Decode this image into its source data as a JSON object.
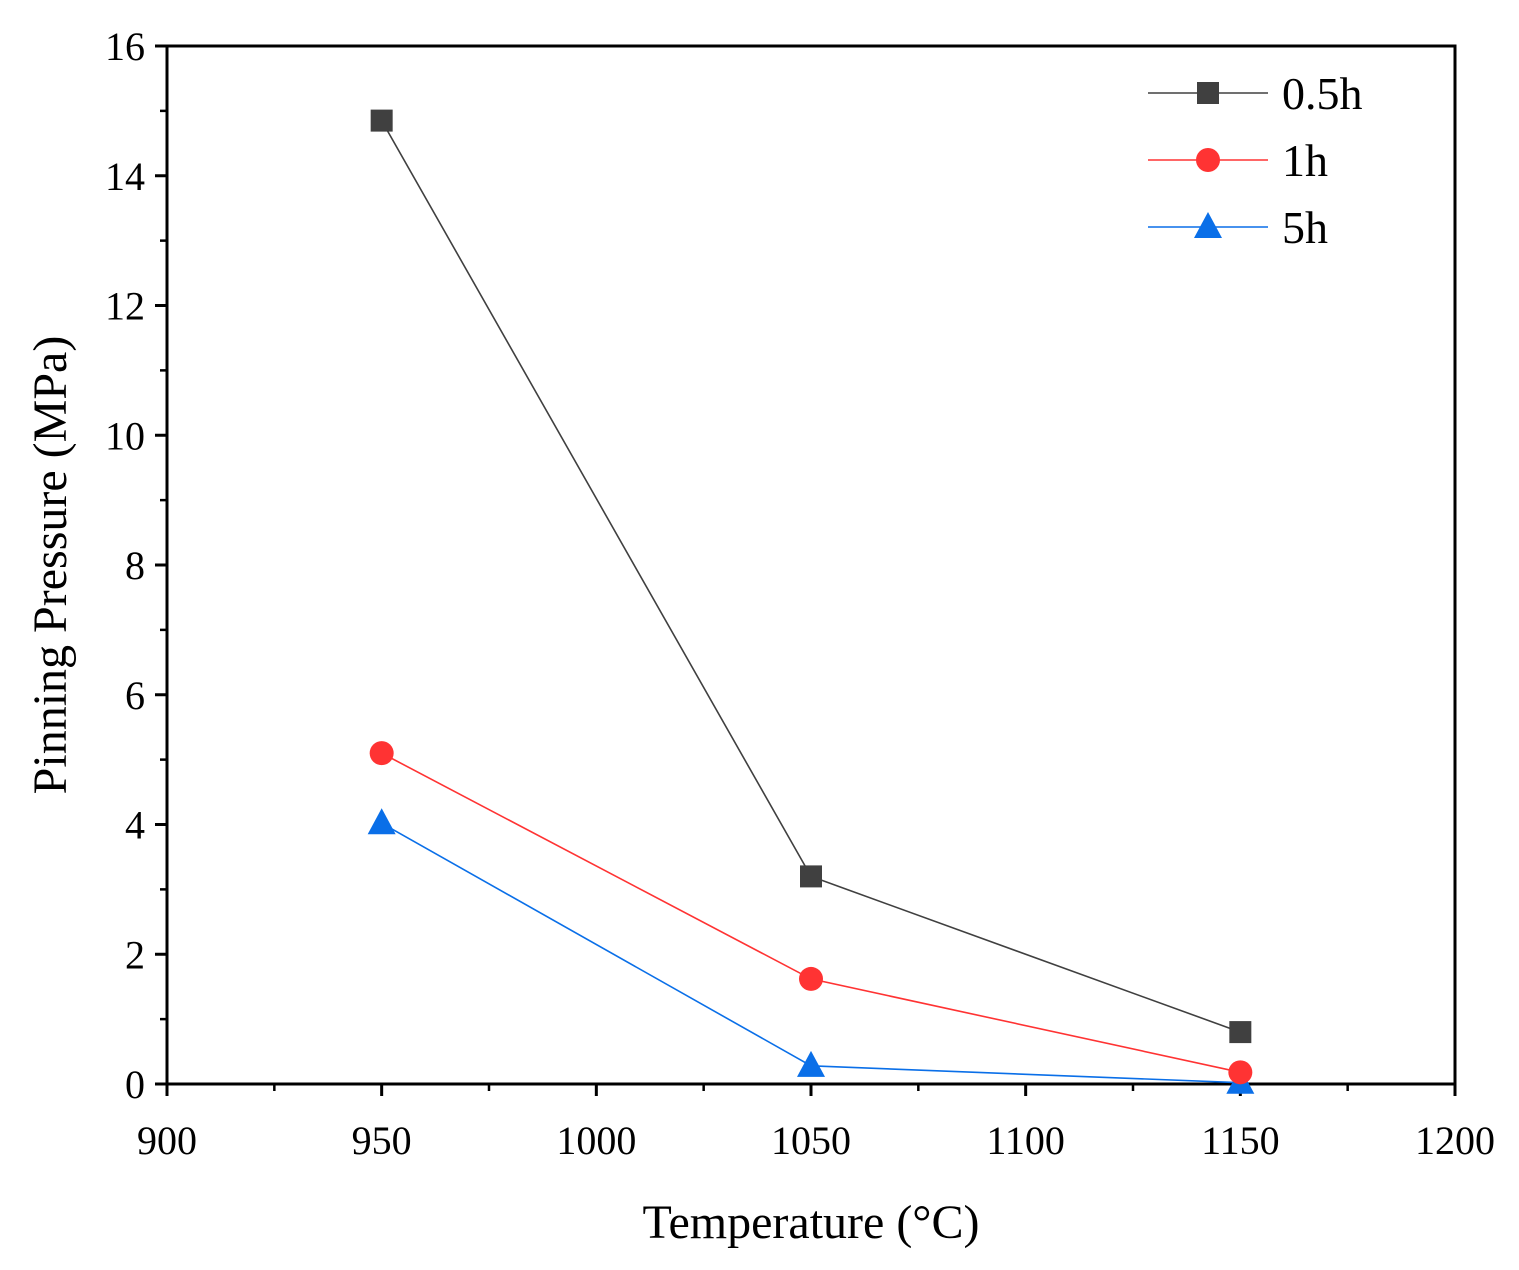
{
  "chart_data": {
    "type": "line",
    "title": "",
    "xlabel": "Temperature (°C)",
    "ylabel": "Pinning Pressure (MPa)",
    "xlim": [
      900,
      1200
    ],
    "ylim": [
      0,
      16
    ],
    "x_ticks": [
      900,
      950,
      1000,
      1050,
      1100,
      1150,
      1200
    ],
    "y_ticks": [
      0,
      2,
      4,
      6,
      8,
      10,
      12,
      14,
      16
    ],
    "grid": false,
    "legend_position": "top-right",
    "x": [
      950,
      1050,
      1150
    ],
    "series": [
      {
        "name": "0.5h",
        "values": [
          14.85,
          3.2,
          0.8
        ],
        "color": "#404040",
        "marker": "square"
      },
      {
        "name": "1h",
        "values": [
          5.1,
          1.62,
          0.18
        ],
        "color": "#ff3333",
        "marker": "circle"
      },
      {
        "name": "5h",
        "values": [
          4.02,
          0.28,
          0.02
        ],
        "color": "#0a6fe8",
        "marker": "triangle"
      }
    ]
  }
}
